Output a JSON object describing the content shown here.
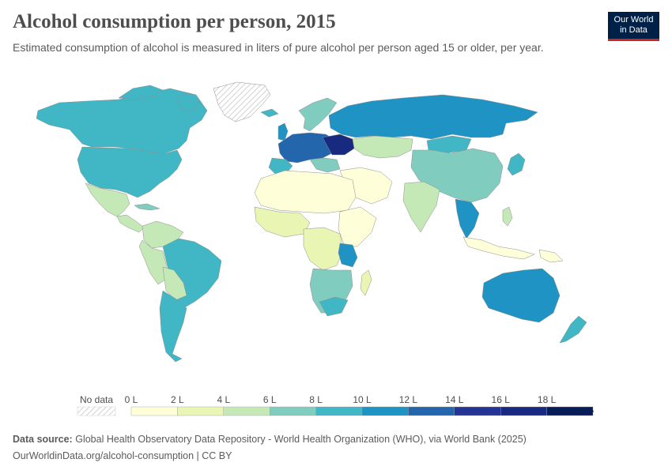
{
  "header": {
    "title": "Alcohol consumption per person, 2015",
    "subtitle": "Estimated consumption of alcohol is measured in liters of pure alcohol per person aged 15 or older, per year."
  },
  "logo": {
    "line1": "Our World",
    "line2": "in Data"
  },
  "legend": {
    "no_data_label": "No data",
    "ticks": [
      "0 L",
      "2 L",
      "4 L",
      "6 L",
      "8 L",
      "10 L",
      "12 L",
      "14 L",
      "16 L",
      "18 L"
    ],
    "colors": [
      "#feffd9",
      "#e9f6b3",
      "#c5e8b7",
      "#80cdbf",
      "#41b6c4",
      "#1f93c3",
      "#2366ac",
      "#253494",
      "#172a80",
      "#081d58"
    ]
  },
  "colors": {
    "no_data_fill": "#f2f2f2",
    "border": "#8f8f8f",
    "logo_bg": "#002147",
    "logo_accent": "#ce261e"
  },
  "footer": {
    "source_label": "Data source:",
    "source_text": "Global Health Observatory Data Repository - World Health Organization (WHO), via World Bank (2025)",
    "url_text": "OurWorldinData.org/alcohol-consumption",
    "separator": " | ",
    "license": "CC BY"
  }
}
